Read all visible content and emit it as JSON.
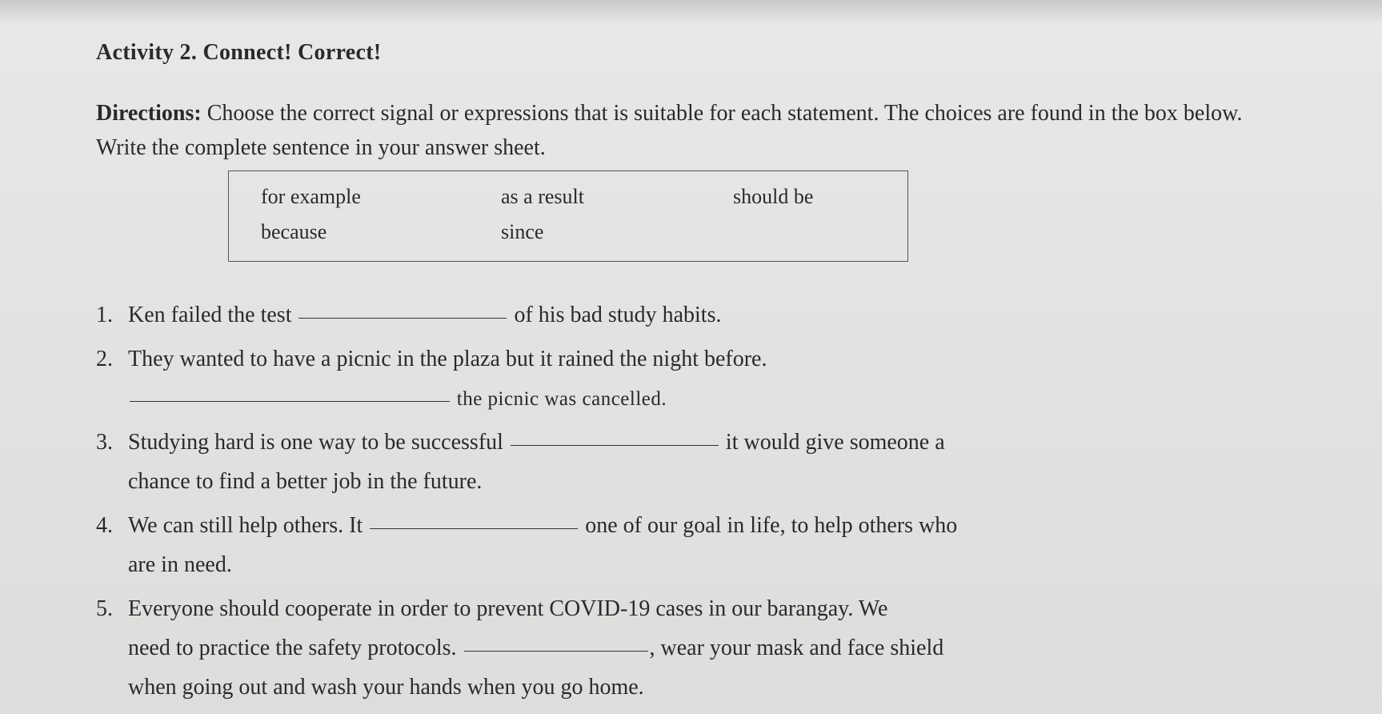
{
  "title": "Activity 2. Connect! Correct!",
  "directions_label": "Directions:",
  "directions_text": " Choose the correct signal or expressions that is suitable for each statement. The choices are found in the box below. Write the complete sentence in your answer sheet.",
  "choices": {
    "row1": {
      "c1": "for example",
      "c2": "as a result",
      "c3": "should be"
    },
    "row2": {
      "c1": "because",
      "c2": "since",
      "c3": ""
    }
  },
  "items": {
    "q1": {
      "num": "1.",
      "pre": "Ken failed the test ",
      "post": " of his bad study habits."
    },
    "q2": {
      "num": "2.",
      "line1": "They wanted to have a picnic in the plaza but it rained the night before.",
      "cursive": " the picnic was cancelled."
    },
    "q3": {
      "num": "3.",
      "pre": "Studying hard is one way to be successful ",
      "post": " it would give someone a",
      "line2": "chance to find a better job in the future."
    },
    "q4": {
      "num": "4.",
      "pre": "We can still help others. It ",
      "post": " one of our goal in life, to help others who",
      "line2": "are in need."
    },
    "q5": {
      "num": "5.",
      "line1": "Everyone should cooperate in order to prevent COVID-19 cases in our barangay. We",
      "pre2": "need to practice the safety protocols. ",
      "post2": ", wear your mask and face shield",
      "line3": "when going out and wash your hands when you go home."
    }
  }
}
